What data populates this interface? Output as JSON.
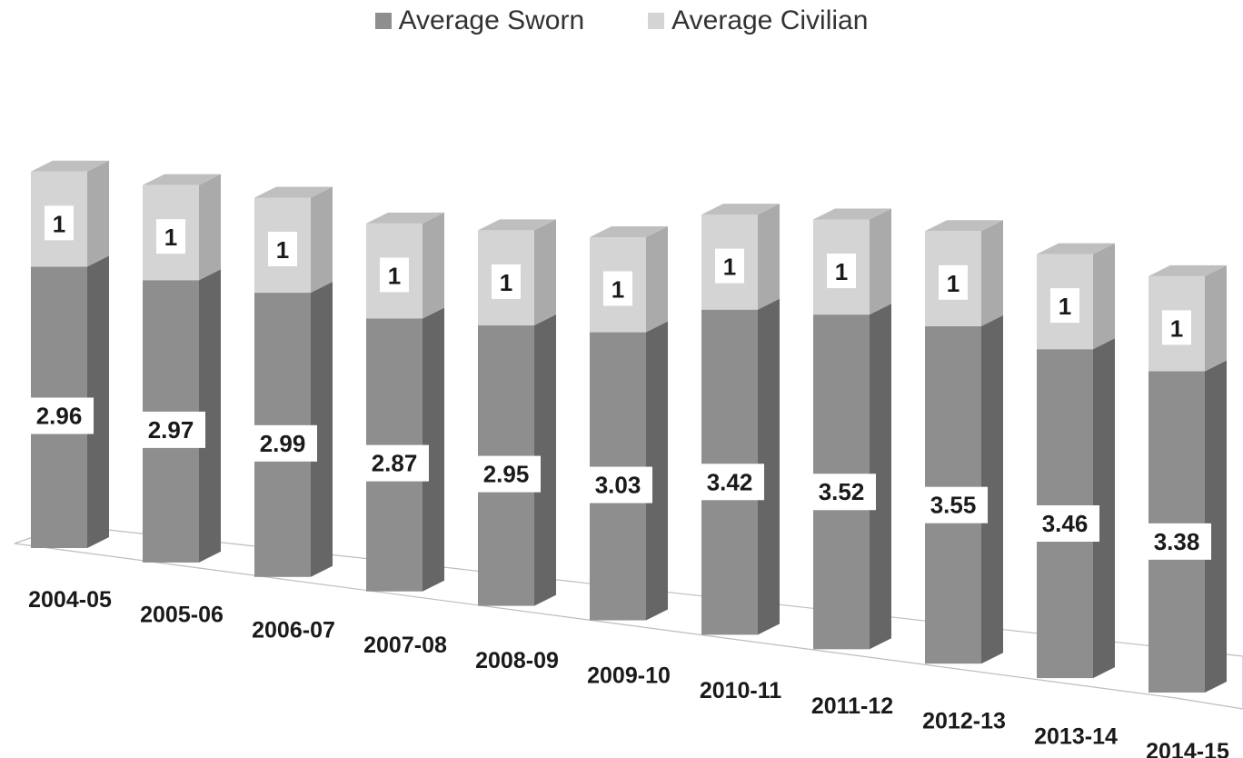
{
  "chart_data": {
    "type": "bar",
    "stacked": true,
    "three_d": true,
    "categories": [
      "2004-05",
      "2005-06",
      "2006-07",
      "2007-08",
      "2008-09",
      "2009-10",
      "2010-11",
      "2011-12",
      "2012-13",
      "2013-14",
      "2014-15"
    ],
    "series": [
      {
        "name": "Average Sworn",
        "values": [
          2.96,
          2.97,
          2.99,
          2.87,
          2.95,
          3.03,
          3.42,
          3.52,
          3.55,
          3.46,
          3.38
        ],
        "color": "#8e8e8e"
      },
      {
        "name": "Average Civilian",
        "values": [
          1,
          1,
          1,
          1,
          1,
          1,
          1,
          1,
          1,
          1,
          1
        ],
        "color": "#d4d4d4"
      }
    ],
    "data_labels": true,
    "legend_position": "top",
    "grid": false
  }
}
